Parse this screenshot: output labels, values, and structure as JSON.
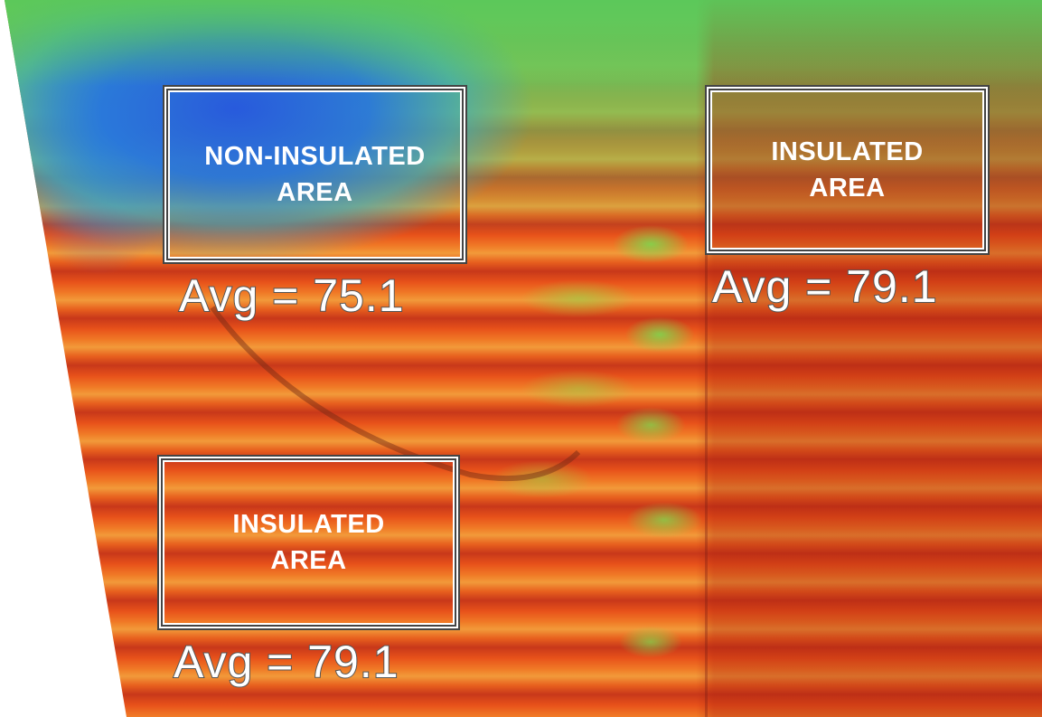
{
  "regions": [
    {
      "label": "NON-INSULATED\nAREA",
      "avg": "Avg = 75.1"
    },
    {
      "label": "INSULATED\nAREA",
      "avg": "Avg = 79.1"
    },
    {
      "label": "INSULATED\nAREA",
      "avg": "Avg = 79.1"
    }
  ],
  "colors": {
    "cold": "#2c5fdc",
    "cool": "#6ec85a",
    "warm": "#e8521a",
    "hot": "#b8281a",
    "label_text": "#ffffff",
    "frame": "#ffffff"
  }
}
